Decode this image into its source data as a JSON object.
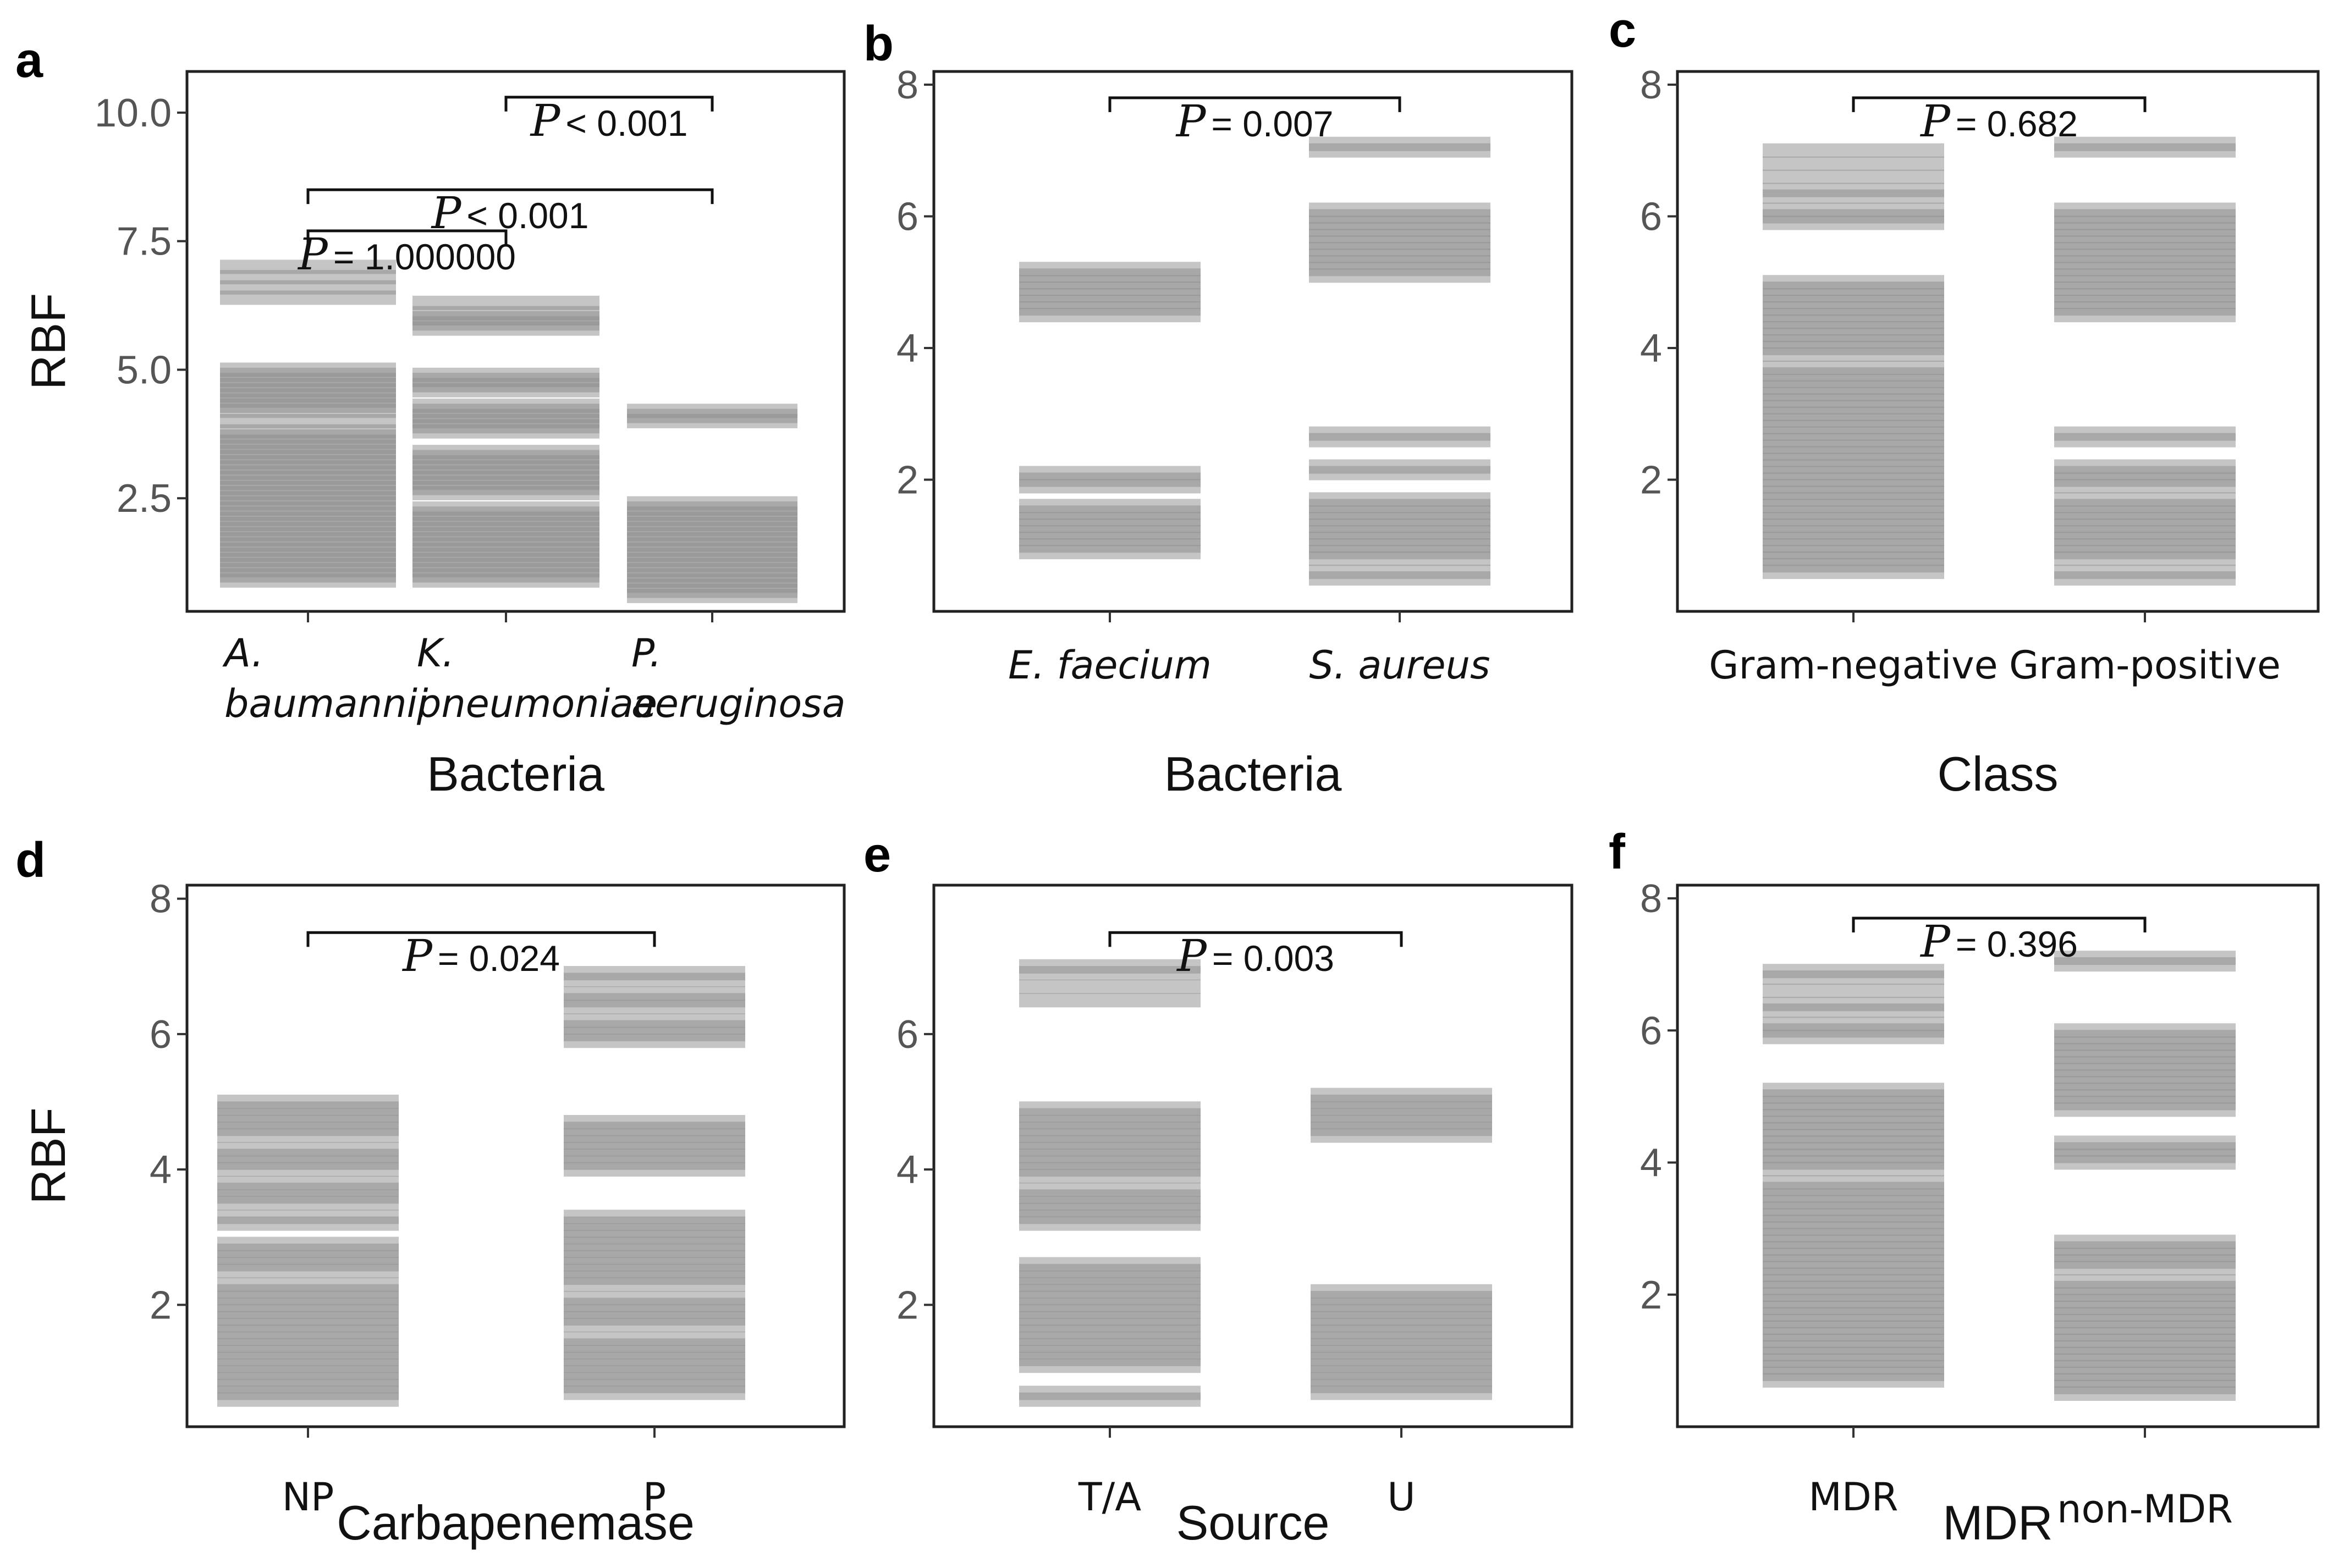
{
  "chart_data": [
    {
      "panel": "a",
      "type": "strip",
      "ylabel": "RBF",
      "xlabel": "Bacteria",
      "ylim": [
        0.3,
        10.8
      ],
      "yticks": [
        2.5,
        5.0,
        7.5,
        10.0
      ],
      "ytick_labels": [
        "2.5",
        "5.0",
        "7.5",
        "10.0"
      ],
      "categories": [
        {
          "label_lines": [
            "A.",
            "baumannii"
          ],
          "italic": true,
          "values": [
            0.9,
            1.0,
            1.1,
            1.2,
            1.3,
            1.4,
            1.5,
            1.6,
            1.7,
            1.8,
            1.9,
            2.0,
            2.1,
            2.2,
            2.3,
            2.4,
            2.5,
            2.6,
            2.7,
            2.8,
            2.9,
            3.0,
            3.1,
            3.2,
            3.3,
            3.4,
            3.5,
            3.6,
            3.7,
            3.8,
            4.0,
            4.2,
            4.3,
            4.4,
            4.5,
            4.6,
            4.7,
            4.8,
            4.9,
            5.0,
            6.4,
            6.6,
            6.8,
            7.0
          ]
        },
        {
          "label_lines": [
            "K.",
            "pneumoniae"
          ],
          "italic": true,
          "values": [
            0.9,
            1.0,
            1.1,
            1.2,
            1.3,
            1.4,
            1.5,
            1.6,
            1.7,
            1.8,
            1.9,
            2.0,
            2.1,
            2.2,
            2.3,
            2.6,
            2.7,
            2.8,
            2.9,
            3.0,
            3.1,
            3.2,
            3.3,
            3.4,
            3.8,
            3.9,
            4.0,
            4.1,
            4.2,
            4.3,
            4.6,
            4.7,
            4.8,
            4.9,
            5.8,
            5.9,
            6.0,
            6.1,
            6.3
          ]
        },
        {
          "label_lines": [
            "P.",
            "aeruginosa"
          ],
          "italic": true,
          "values": [
            0.6,
            0.7,
            0.8,
            0.9,
            1.0,
            1.1,
            1.2,
            1.3,
            1.4,
            1.5,
            1.6,
            1.7,
            1.8,
            1.9,
            2.0,
            2.1,
            2.2,
            2.3,
            2.4,
            4.0,
            4.1,
            4.2
          ]
        }
      ],
      "comparisons": [
        {
          "from": 1,
          "to": 2,
          "y": 10.3,
          "text": "< 0.001"
        },
        {
          "from": 0,
          "to": 2,
          "y": 8.5,
          "text": "< 0.001"
        },
        {
          "from": 0,
          "to": 1,
          "y": 7.7,
          "text": "= 1.000000"
        }
      ]
    },
    {
      "panel": "b",
      "type": "strip",
      "ylabel": "",
      "xlabel": "Bacteria",
      "ylim": [
        0.0,
        8.2
      ],
      "yticks": [
        2,
        4,
        6,
        8
      ],
      "ytick_labels": [
        "2",
        "4",
        "6",
        "8"
      ],
      "categories": [
        {
          "label_lines": [
            "E. faecium"
          ],
          "italic": true,
          "values": [
            0.9,
            1.0,
            1.1,
            1.2,
            1.3,
            1.4,
            1.5,
            1.6,
            1.9,
            2.0,
            2.1,
            4.5,
            4.6,
            4.7,
            4.8,
            4.9,
            5.0,
            5.1,
            5.2
          ]
        },
        {
          "label_lines": [
            "S. aureus"
          ],
          "italic": true,
          "values": [
            0.5,
            0.6,
            0.8,
            0.9,
            1.0,
            1.1,
            1.2,
            1.3,
            1.4,
            1.5,
            1.6,
            1.7,
            2.1,
            2.2,
            2.6,
            2.7,
            5.1,
            5.2,
            5.3,
            5.4,
            5.5,
            5.6,
            5.7,
            5.8,
            5.9,
            6.0,
            6.1,
            7.0,
            7.1
          ]
        }
      ],
      "comparisons": [
        {
          "from": 0,
          "to": 1,
          "y": 7.8,
          "text": "= 0.007"
        }
      ]
    },
    {
      "panel": "c",
      "type": "strip",
      "ylabel": "",
      "xlabel": "Class",
      "ylim": [
        0.0,
        8.2
      ],
      "yticks": [
        2,
        4,
        6,
        8
      ],
      "ytick_labels": [
        "2",
        "4",
        "6",
        "8"
      ],
      "categories": [
        {
          "label_lines": [
            "Gram-negative"
          ],
          "italic": false,
          "values": [
            0.6,
            0.7,
            0.8,
            0.9,
            1.0,
            1.1,
            1.2,
            1.3,
            1.4,
            1.5,
            1.6,
            1.7,
            1.8,
            1.9,
            2.0,
            2.1,
            2.2,
            2.3,
            2.4,
            2.5,
            2.6,
            2.7,
            2.8,
            2.9,
            3.0,
            3.1,
            3.2,
            3.3,
            3.4,
            3.5,
            3.6,
            3.7,
            3.9,
            4.0,
            4.1,
            4.2,
            4.3,
            4.4,
            4.5,
            4.6,
            4.7,
            4.8,
            4.9,
            5.0,
            5.9,
            6.0,
            6.1,
            6.3,
            6.4,
            6.6,
            6.8,
            7.0
          ]
        },
        {
          "label_lines": [
            "Gram-positive"
          ],
          "italic": false,
          "values": [
            0.5,
            0.6,
            0.8,
            0.9,
            1.0,
            1.1,
            1.2,
            1.3,
            1.4,
            1.5,
            1.6,
            1.7,
            1.9,
            2.0,
            2.1,
            2.2,
            2.6,
            2.7,
            4.5,
            4.6,
            4.7,
            4.8,
            4.9,
            5.0,
            5.1,
            5.2,
            5.3,
            5.4,
            5.5,
            5.6,
            5.7,
            5.8,
            5.9,
            6.0,
            6.1,
            7.0,
            7.1
          ]
        }
      ],
      "comparisons": [
        {
          "from": 0,
          "to": 1,
          "y": 7.8,
          "text": "= 0.682"
        }
      ]
    },
    {
      "panel": "d",
      "type": "strip",
      "ylabel": "RBF",
      "xlabel": "Carbapenemase",
      "ylim": [
        0.2,
        8.2
      ],
      "yticks": [
        2,
        4,
        6,
        8
      ],
      "ytick_labels": [
        "2",
        "4",
        "6",
        "8"
      ],
      "categories": [
        {
          "label_lines": [
            "NP"
          ],
          "italic": false,
          "values": [
            0.6,
            0.7,
            0.8,
            0.9,
            1.0,
            1.1,
            1.2,
            1.3,
            1.4,
            1.5,
            1.6,
            1.7,
            1.8,
            1.9,
            2.0,
            2.1,
            2.2,
            2.3,
            2.5,
            2.6,
            2.7,
            2.8,
            2.9,
            3.2,
            3.3,
            3.5,
            3.6,
            3.7,
            3.8,
            4.0,
            4.1,
            4.2,
            4.3,
            4.5,
            4.6,
            4.7,
            4.8,
            4.9,
            5.0
          ]
        },
        {
          "label_lines": [
            "P"
          ],
          "italic": false,
          "values": [
            0.7,
            0.8,
            0.9,
            1.0,
            1.1,
            1.2,
            1.3,
            1.4,
            1.5,
            1.7,
            1.8,
            1.9,
            2.0,
            2.1,
            2.3,
            2.4,
            2.5,
            2.6,
            2.7,
            2.8,
            2.9,
            3.0,
            3.1,
            3.2,
            3.3,
            4.0,
            4.1,
            4.2,
            4.3,
            4.4,
            4.5,
            4.6,
            4.7,
            5.9,
            6.0,
            6.1,
            6.2,
            6.4,
            6.5,
            6.6,
            6.8,
            6.9
          ]
        }
      ],
      "comparisons": [
        {
          "from": 0,
          "to": 1,
          "y": 7.5,
          "text": "= 0.024"
        }
      ]
    },
    {
      "panel": "e",
      "type": "strip",
      "ylabel": "",
      "xlabel": "Source",
      "ylim": [
        0.2,
        8.2
      ],
      "yticks": [
        2,
        4,
        6
      ],
      "ytick_labels": [
        "2",
        "4",
        "6"
      ],
      "categories": [
        {
          "label_lines": [
            "T/A"
          ],
          "italic": false,
          "values": [
            0.6,
            0.7,
            1.1,
            1.2,
            1.3,
            1.4,
            1.5,
            1.6,
            1.7,
            1.8,
            1.9,
            2.0,
            2.1,
            2.2,
            2.3,
            2.4,
            2.5,
            2.6,
            3.2,
            3.3,
            3.4,
            3.5,
            3.6,
            3.7,
            3.9,
            4.0,
            4.1,
            4.2,
            4.3,
            4.4,
            4.5,
            4.6,
            4.7,
            4.8,
            4.9,
            6.5,
            6.7,
            6.9,
            7.0
          ]
        },
        {
          "label_lines": [
            "U"
          ],
          "italic": false,
          "values": [
            0.7,
            0.8,
            0.9,
            1.0,
            1.1,
            1.2,
            1.3,
            1.4,
            1.5,
            1.6,
            1.7,
            1.8,
            1.9,
            2.0,
            2.1,
            2.2,
            4.5,
            4.6,
            4.7,
            4.8,
            4.9,
            5.0,
            5.1
          ]
        }
      ],
      "comparisons": [
        {
          "from": 0,
          "to": 1,
          "y": 7.5,
          "text": "= 0.003"
        }
      ]
    },
    {
      "panel": "f",
      "type": "strip",
      "ylabel": "",
      "xlabel": "MDR",
      "ylim": [
        0.0,
        8.2
      ],
      "yticks": [
        2,
        4,
        6,
        8
      ],
      "ytick_labels": [
        "2",
        "4",
        "6",
        "8"
      ],
      "categories": [
        {
          "label_lines": [
            "MDR"
          ],
          "italic": false,
          "values": [
            0.7,
            0.8,
            0.9,
            1.0,
            1.1,
            1.2,
            1.3,
            1.4,
            1.5,
            1.6,
            1.7,
            1.8,
            1.9,
            2.0,
            2.1,
            2.2,
            2.3,
            2.4,
            2.5,
            2.6,
            2.7,
            2.8,
            2.9,
            3.0,
            3.1,
            3.2,
            3.3,
            3.4,
            3.5,
            3.6,
            3.7,
            3.9,
            4.0,
            4.1,
            4.2,
            4.3,
            4.4,
            4.5,
            4.6,
            4.7,
            4.8,
            4.9,
            5.0,
            5.1,
            5.9,
            6.0,
            6.1,
            6.3,
            6.4,
            6.6,
            6.8,
            6.9
          ]
        },
        {
          "label_lines": [
            "non-MDR"
          ],
          "italic": false,
          "values": [
            0.5,
            0.6,
            0.7,
            0.8,
            0.9,
            1.0,
            1.1,
            1.2,
            1.3,
            1.4,
            1.5,
            1.6,
            1.7,
            1.8,
            1.9,
            2.0,
            2.1,
            2.2,
            2.4,
            2.5,
            2.6,
            2.7,
            2.8,
            4.0,
            4.1,
            4.2,
            4.3,
            4.8,
            4.9,
            5.0,
            5.1,
            5.2,
            5.3,
            5.4,
            5.5,
            5.6,
            5.7,
            5.8,
            5.9,
            6.0,
            7.0,
            7.1
          ]
        }
      ],
      "comparisons": [
        {
          "from": 0,
          "to": 1,
          "y": 7.7,
          "text": "= 0.396"
        }
      ]
    }
  ],
  "p_symbol": "P",
  "colors": {
    "mark": "#8c8c8c",
    "axis": "#333333",
    "frame": "#222222",
    "tick_text": "#555555"
  }
}
